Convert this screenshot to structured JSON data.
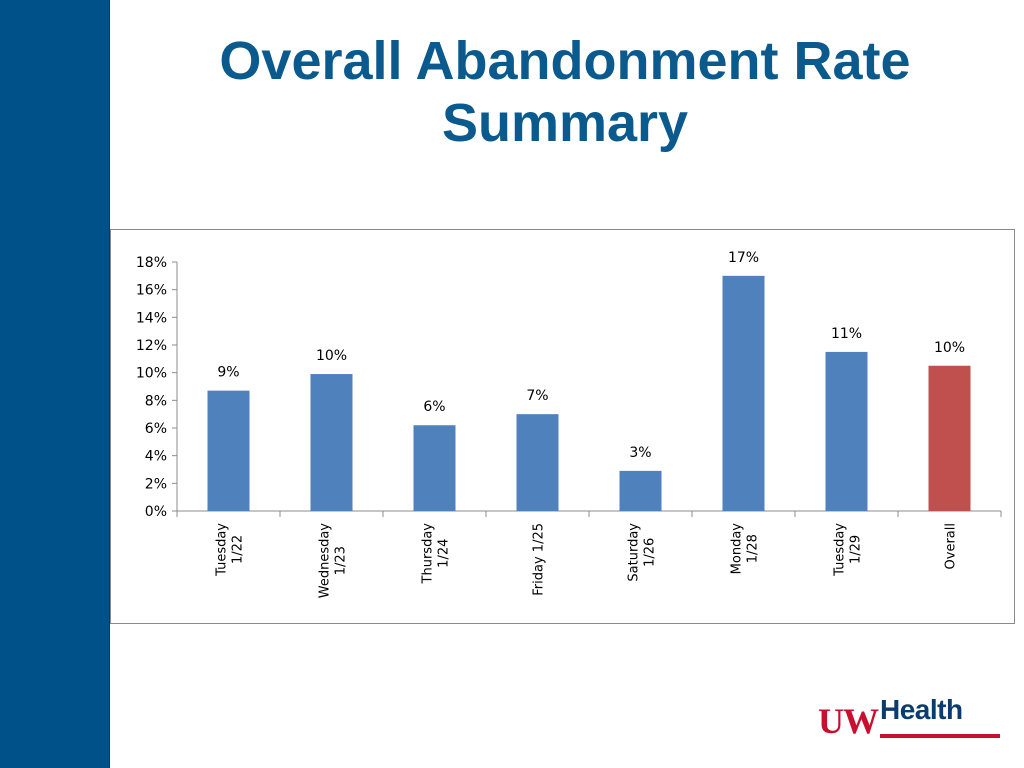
{
  "slide": {
    "title_line1": "Overall Abandonment Rate",
    "title_line2": "Summary"
  },
  "logo": {
    "uw": "UW",
    "health": "Health"
  },
  "colors": {
    "left_bar": "#00508a",
    "title": "#0a5a8e",
    "bar_default": "#4f81bd",
    "bar_overall": "#c0504d"
  },
  "chart_data": {
    "type": "bar",
    "categories": [
      [
        "Tuesday",
        "1/22"
      ],
      [
        "Wednesday",
        "1/23"
      ],
      [
        "Thursday",
        "1/24"
      ],
      [
        "Friday 1/25"
      ],
      [
        "Saturday",
        "1/26"
      ],
      [
        "Monday",
        "1/28"
      ],
      [
        "Tuesday",
        "1/29"
      ],
      [
        "Overall"
      ]
    ],
    "values": [
      8.7,
      9.9,
      6.2,
      7.0,
      2.9,
      17.0,
      11.5,
      10.5
    ],
    "data_labels": [
      "9%",
      "10%",
      "6%",
      "7%",
      "3%",
      "17%",
      "11%",
      "10%"
    ],
    "highlight_index": 7,
    "y_ticks": [
      "0%",
      "2%",
      "4%",
      "6%",
      "8%",
      "10%",
      "12%",
      "14%",
      "16%",
      "18%"
    ],
    "ylim": [
      0,
      18
    ],
    "y_step": 2,
    "title": "",
    "xlabel": "",
    "ylabel": "",
    "grid": false
  }
}
